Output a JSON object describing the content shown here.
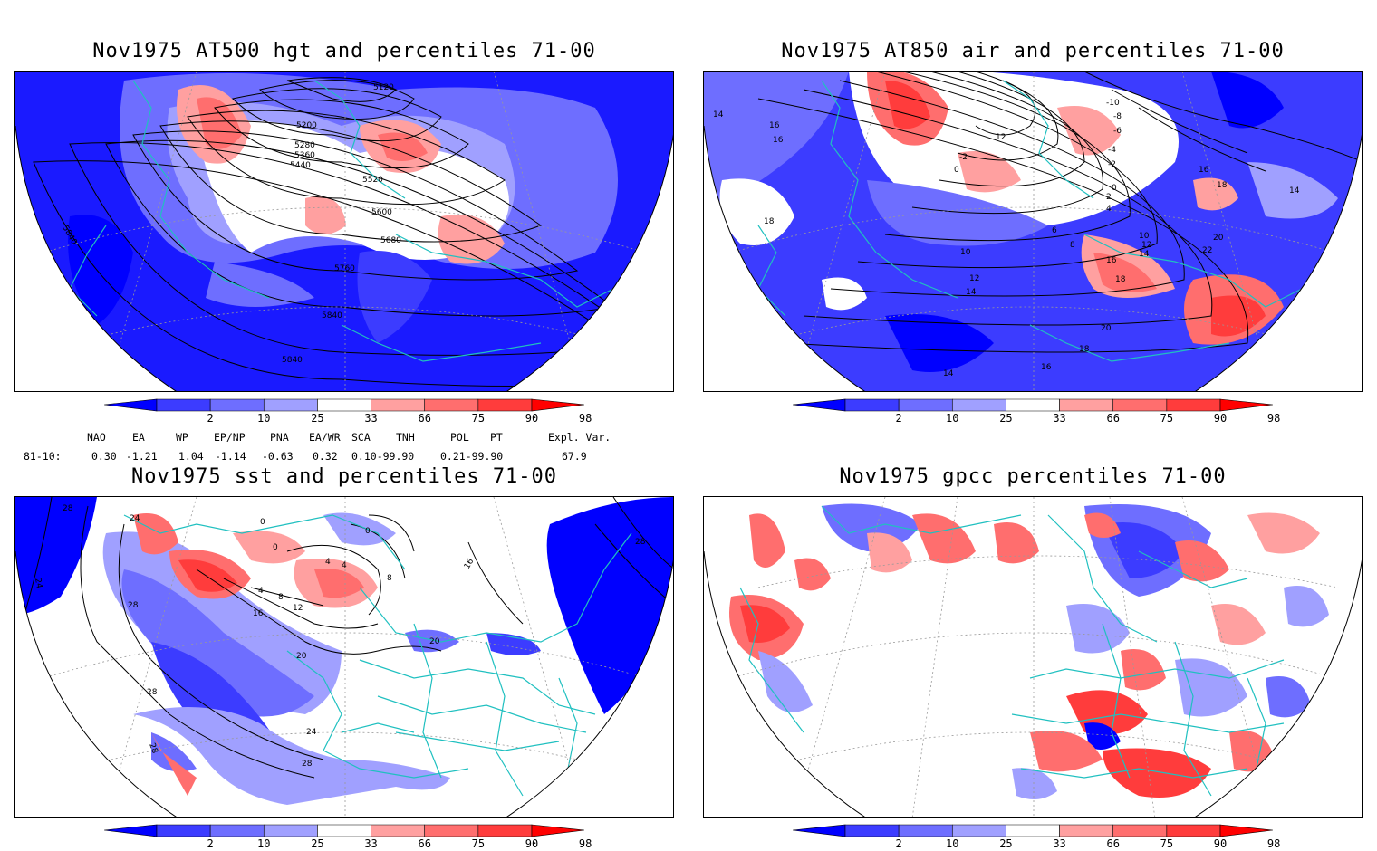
{
  "panels": {
    "hgt": {
      "title": "Nov1975 AT500 hgt and percentiles 71-00",
      "contour_labels": [
        "5120",
        "5200",
        "5280",
        "5360",
        "5440",
        "5520",
        "5600",
        "5680",
        "5760",
        "5840",
        "5840",
        "5840"
      ]
    },
    "air": {
      "title": "Nov1975 AT850 air and percentiles 71-00",
      "contour_labels": [
        "14",
        "16",
        "16",
        "18",
        "10",
        "12",
        "14",
        "14",
        "6",
        "8",
        "10",
        "12",
        "14",
        "16",
        "18",
        "20",
        "22",
        "18",
        "16",
        "-10",
        "-8",
        "-6",
        "-4",
        "-2",
        "0",
        "2",
        "4",
        "16",
        "18",
        "20",
        "-2",
        "0",
        "12",
        "14"
      ]
    },
    "sst": {
      "title": "Nov1975 sst and percentiles 71-00",
      "contour_labels": [
        "28",
        "24",
        "24",
        "28",
        "28",
        "28",
        "24",
        "28",
        "28",
        "0",
        "4",
        "8",
        "12",
        "16",
        "20",
        "20",
        "4",
        "4",
        "0",
        "0",
        "8",
        "16"
      ]
    },
    "gpcc": {
      "title": "Nov1975 gpcc percentiles 71-00"
    }
  },
  "colorbar": {
    "labels": [
      "2",
      "10",
      "25",
      "33",
      "66",
      "75",
      "90",
      "98"
    ],
    "colors": [
      "#0000ff",
      "#3c3cff",
      "#6e6eff",
      "#a0a0ff",
      "#ffffff",
      "#ffa0a0",
      "#ff6e6e",
      "#ff3c3c",
      "#ff0000"
    ]
  },
  "teleconnections": {
    "headers": [
      "NAO",
      "EA",
      "WP",
      "EP/NP",
      "PNA",
      "EA/WR",
      "SCA",
      "TNH",
      "POL",
      "PT",
      "Expl. Var."
    ],
    "row_label": "81-10:",
    "values": [
      "0.30",
      "-1.21",
      "1.04",
      "-1.14",
      "-0.63",
      "0.32",
      "0.10-99.90",
      "0.21-99.90",
      "67.9"
    ]
  }
}
